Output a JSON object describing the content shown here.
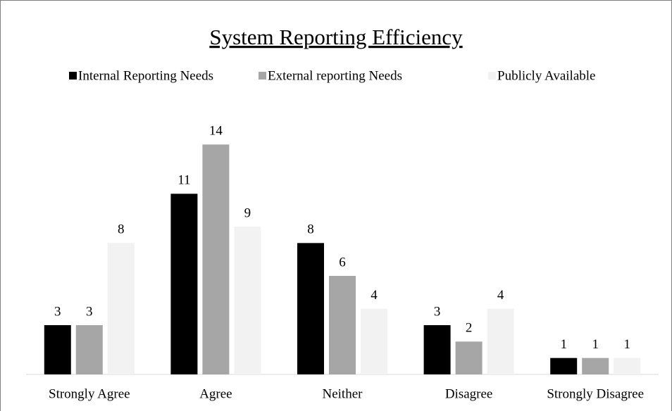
{
  "chart_data": {
    "type": "bar",
    "title": "System Reporting Efficiency",
    "categories": [
      "Strongly Agree",
      "Agree",
      "Neither",
      "Disagree",
      "Strongly Disagree"
    ],
    "series": [
      {
        "name": "Internal Reporting Needs",
        "color": "#000000",
        "values": [
          3,
          11,
          8,
          3,
          1
        ]
      },
      {
        "name": "External reporting Needs",
        "color": "#a6a6a6",
        "values": [
          3,
          14,
          6,
          2,
          1
        ]
      },
      {
        "name": "Publicly Available",
        "color": "#f2f2f2",
        "values": [
          8,
          9,
          4,
          4,
          1
        ]
      }
    ],
    "ylim": [
      0,
      15
    ],
    "legend": "top"
  }
}
